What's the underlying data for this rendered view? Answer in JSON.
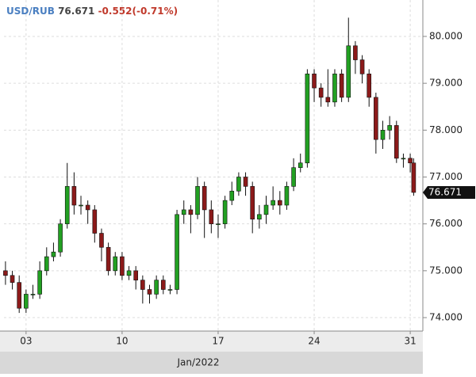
{
  "chart_data": {
    "type": "candlestick",
    "quote": {
      "symbol": "USD/RUB",
      "price": 76.671,
      "change": "-0.552(-0.71%)"
    },
    "xlabel": "Jan/2022",
    "x": [
      1.5,
      2,
      2.5,
      3,
      3.5,
      4,
      4.5,
      5,
      5.5,
      6,
      6.5,
      7,
      7.5,
      8,
      8.5,
      9,
      9.5,
      10,
      10.5,
      11,
      11.5,
      12,
      12.5,
      13,
      13.5,
      14,
      14.5,
      15,
      15.5,
      16,
      16.5,
      17,
      17.5,
      18,
      18.5,
      19,
      19.5,
      20,
      20.5,
      21,
      21.5,
      22,
      22.5,
      23,
      23.5,
      24,
      24.5,
      25,
      25.5,
      26,
      26.5,
      27,
      27.5,
      28,
      28.5,
      29,
      29.5,
      30,
      30.5,
      31,
      31.25
    ],
    "open": [
      75.0,
      74.9,
      74.75,
      74.2,
      74.5,
      74.5,
      75.0,
      75.3,
      75.4,
      76.0,
      76.8,
      76.4,
      76.4,
      76.3,
      75.8,
      75.5,
      75.0,
      75.3,
      74.9,
      75.0,
      74.8,
      74.6,
      74.5,
      74.8,
      74.6,
      74.6,
      76.2,
      76.3,
      76.2,
      76.8,
      76.3,
      76.0,
      76.0,
      76.5,
      76.7,
      77.0,
      76.8,
      76.1,
      76.2,
      76.4,
      76.5,
      76.4,
      76.8,
      77.2,
      77.3,
      79.2,
      78.9,
      78.7,
      78.6,
      79.2,
      78.7,
      79.8,
      79.5,
      79.2,
      78.7,
      77.8,
      78.0,
      78.1,
      77.4,
      77.4,
      77.3
    ],
    "high": [
      75.2,
      75.0,
      74.9,
      74.6,
      74.7,
      75.2,
      75.5,
      75.6,
      76.1,
      77.3,
      77.1,
      76.6,
      76.5,
      76.4,
      75.9,
      75.6,
      75.4,
      75.4,
      75.1,
      75.1,
      74.9,
      74.7,
      74.9,
      74.9,
      74.7,
      76.3,
      76.5,
      76.4,
      77.0,
      76.9,
      76.5,
      76.2,
      76.6,
      76.9,
      77.1,
      77.1,
      76.9,
      76.4,
      76.6,
      76.8,
      76.7,
      76.9,
      77.4,
      77.5,
      79.3,
      79.3,
      79.0,
      79.3,
      79.3,
      79.3,
      80.4,
      79.9,
      79.6,
      79.3,
      78.8,
      78.2,
      78.3,
      78.2,
      77.5,
      77.5,
      77.4
    ],
    "low": [
      74.7,
      74.6,
      74.1,
      74.1,
      74.4,
      74.4,
      74.9,
      75.2,
      75.3,
      75.9,
      76.2,
      76.2,
      76.0,
      75.6,
      75.2,
      74.9,
      74.9,
      74.8,
      74.8,
      74.6,
      74.3,
      74.3,
      74.4,
      74.5,
      74.5,
      74.5,
      76.0,
      75.8,
      76.1,
      75.7,
      75.8,
      75.7,
      75.9,
      76.4,
      76.6,
      76.6,
      75.8,
      75.9,
      76.0,
      76.3,
      76.2,
      76.3,
      76.7,
      77.1,
      77.2,
      78.6,
      78.5,
      78.5,
      78.5,
      78.6,
      78.6,
      79.2,
      79.0,
      78.5,
      77.5,
      77.6,
      77.8,
      77.3,
      77.2,
      77.1,
      76.6
    ],
    "close": [
      74.9,
      74.75,
      74.2,
      74.5,
      74.5,
      75.0,
      75.3,
      75.4,
      76.0,
      76.8,
      76.4,
      76.4,
      76.3,
      75.8,
      75.5,
      75.0,
      75.3,
      74.9,
      75.0,
      74.8,
      74.6,
      74.5,
      74.8,
      74.6,
      74.6,
      76.2,
      76.3,
      76.2,
      76.8,
      76.3,
      76.0,
      76.0,
      76.5,
      76.7,
      77.0,
      76.8,
      76.1,
      76.2,
      76.4,
      76.5,
      76.4,
      76.8,
      77.2,
      77.3,
      79.2,
      78.9,
      78.7,
      78.6,
      79.2,
      78.7,
      79.8,
      79.5,
      79.2,
      78.7,
      77.8,
      78.0,
      78.1,
      77.4,
      77.4,
      77.3,
      76.671
    ],
    "up_color": "#22a022",
    "down_color": "#8b1a1a",
    "xlim": [
      1.39,
      31.92
    ],
    "ylim": [
      73.713,
      80.777
    ],
    "xticks": [
      {
        "value": 3,
        "label": "03"
      },
      10,
      17,
      24,
      31
    ],
    "yticks": [
      {
        "value": 74,
        "label": "74.000"
      },
      {
        "value": 75,
        "label": "75.000"
      },
      {
        "value": 76,
        "label": "76.000"
      },
      {
        "value": 77,
        "label": "77.000"
      },
      {
        "value": 78,
        "label": "78.000"
      },
      {
        "value": 79,
        "label": "79.000"
      },
      {
        "value": 80,
        "label": "80.000"
      }
    ],
    "grid": true
  }
}
